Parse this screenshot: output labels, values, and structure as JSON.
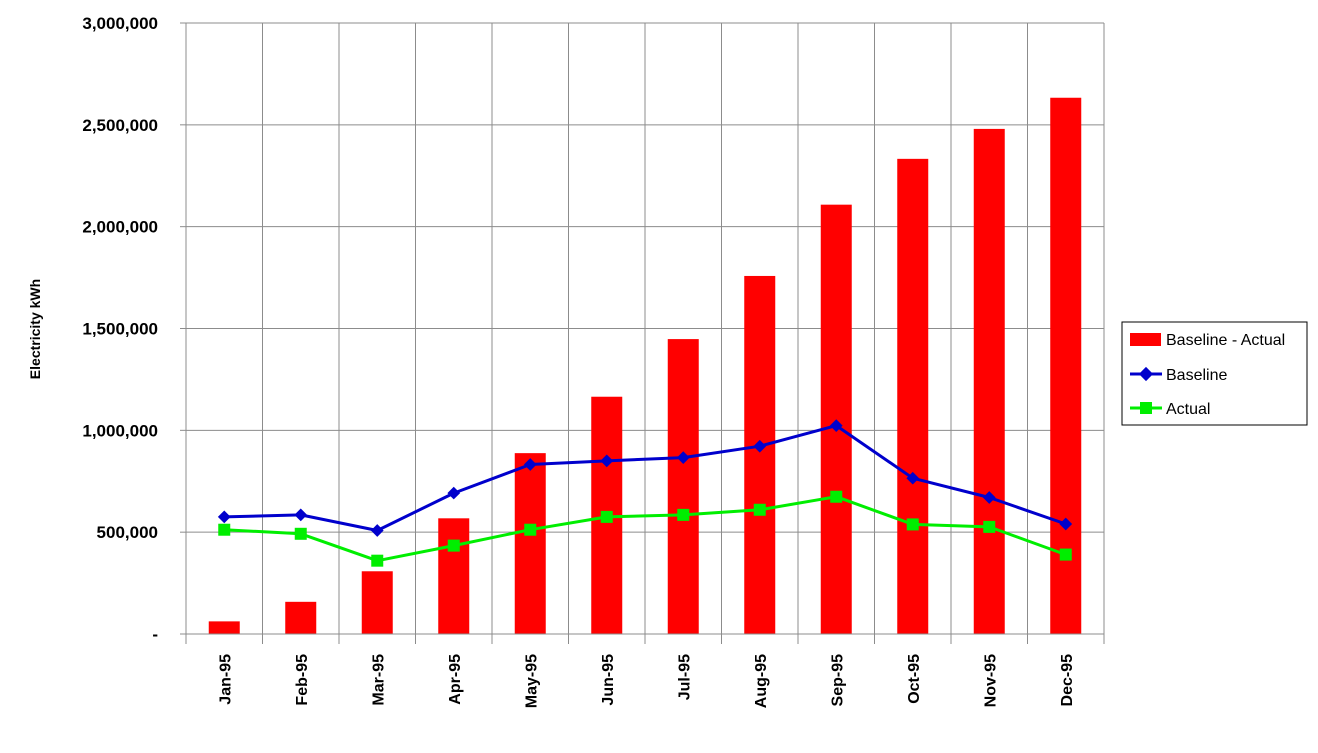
{
  "chart_data": {
    "type": "bar",
    "title": "",
    "xlabel": "",
    "ylabel": "Electricity kWh",
    "ylim": [
      0,
      3000000
    ],
    "y_ticks": [
      {
        "value": 0,
        "label": "-"
      },
      {
        "value": 500000,
        "label": "500,000"
      },
      {
        "value": 1000000,
        "label": "1,000,000"
      },
      {
        "value": 1500000,
        "label": "1,500,000"
      },
      {
        "value": 2000000,
        "label": "2,000,000"
      },
      {
        "value": 2500000,
        "label": "2,500,000"
      },
      {
        "value": 3000000,
        "label": "3,000,000"
      }
    ],
    "grid": true,
    "legend_position": "right",
    "categories": [
      "Jan-95",
      "Feb-95",
      "Mar-95",
      "Apr-95",
      "May-95",
      "Jun-95",
      "Jul-95",
      "Aug-95",
      "Sep-95",
      "Oct-95",
      "Nov-95",
      "Dec-95"
    ],
    "series": [
      {
        "name": "Baseline - Actual",
        "type": "bar",
        "color": "#ff0000",
        "values": [
          62000,
          158000,
          308000,
          568000,
          888000,
          1165000,
          1448000,
          1758000,
          2108000,
          2333000,
          2480000,
          2633000
        ]
      },
      {
        "name": "Baseline",
        "type": "line",
        "marker": "diamond",
        "color": "#0000cc",
        "values": [
          575000,
          585000,
          508000,
          692000,
          832000,
          850000,
          866000,
          922000,
          1023000,
          765000,
          670000,
          540000
        ]
      },
      {
        "name": "Actual",
        "type": "line",
        "marker": "square",
        "color": "#00ee00",
        "values": [
          512000,
          492000,
          360000,
          434000,
          512000,
          575000,
          585000,
          610000,
          674000,
          538000,
          526000,
          390000
        ]
      }
    ]
  }
}
